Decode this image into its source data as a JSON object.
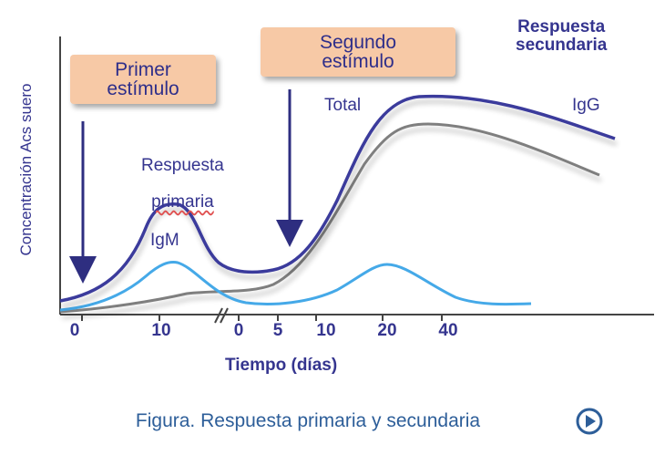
{
  "diagram": {
    "ylabel": "Concentración Acs suero",
    "xlabel": "Tiempo (días)",
    "ticks": [
      "0",
      "10",
      "0",
      "5",
      "10",
      "20",
      "40"
    ],
    "stimulus_1": "Primer\nestímulo",
    "stimulus_2": "Segundo\nestímulo",
    "primary_response_word1": "Respuesta",
    "primary_response_word2": "primaria",
    "secondary_response": "Respuesta\nsecundaria",
    "curve_total": "Total",
    "curve_igg": "IgG",
    "curve_igm": "IgM",
    "colors": {
      "total": "#3b3b9c",
      "igg": "#7f7f7f",
      "igm": "#45a9e8",
      "arrow": "#2e2e80",
      "stimulus_box": "#f7c9a6",
      "caption": "#2d5e99"
    }
  },
  "caption": "Figura. Respuesta primaria y secundaria",
  "play_icon": "play-circle-icon"
}
